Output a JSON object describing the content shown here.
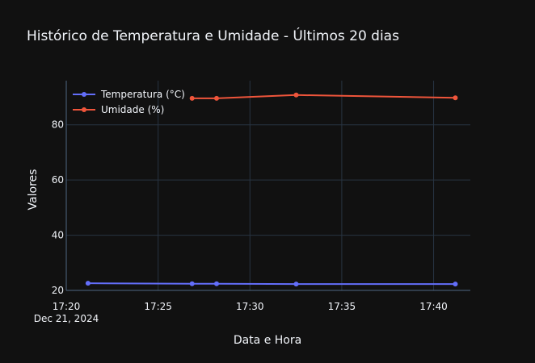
{
  "chart_data": {
    "type": "line",
    "title": "Histórico de Temperatura e Umidade - Últimos 20 dias",
    "xlabel": "Data e Hora",
    "ylabel": "Valores",
    "x_axis_type": "datetime",
    "x_tick_labels": [
      "17:20",
      "17:25",
      "17:30",
      "17:35",
      "17:40"
    ],
    "x_tick_values": [
      "2024-12-21 17:20",
      "2024-12-21 17:25",
      "2024-12-21 17:30",
      "2024-12-21 17:35",
      "2024-12-21 17:40"
    ],
    "x_date_label": "Dec 21, 2024",
    "xlim": [
      "2024-12-21 17:20:00",
      "2024-12-21 17:42:00"
    ],
    "y_tick_labels": [
      "20",
      "40",
      "60",
      "80"
    ],
    "y_tick_values": [
      20,
      40,
      60,
      80
    ],
    "ylim": [
      20,
      96
    ],
    "grid": true,
    "legend_position": "top-left",
    "series": [
      {
        "name": "Temperatura (°C)",
        "color": "#636efa",
        "x": [
          "2024-12-21 17:21:11",
          "2024-12-21 17:26:51",
          "2024-12-21 17:28:11",
          "2024-12-21 17:32:31",
          "2024-12-21 17:41:11"
        ],
        "values": [
          22.6,
          22.4,
          22.4,
          22.3,
          22.3
        ]
      },
      {
        "name": "Umidade (%)",
        "color": "#ef553b",
        "x": [
          "2024-12-21 17:26:51",
          "2024-12-21 17:28:11",
          "2024-12-21 17:32:31",
          "2024-12-21 17:41:11"
        ],
        "values": [
          89.6,
          89.6,
          90.8,
          89.8
        ]
      }
    ]
  }
}
